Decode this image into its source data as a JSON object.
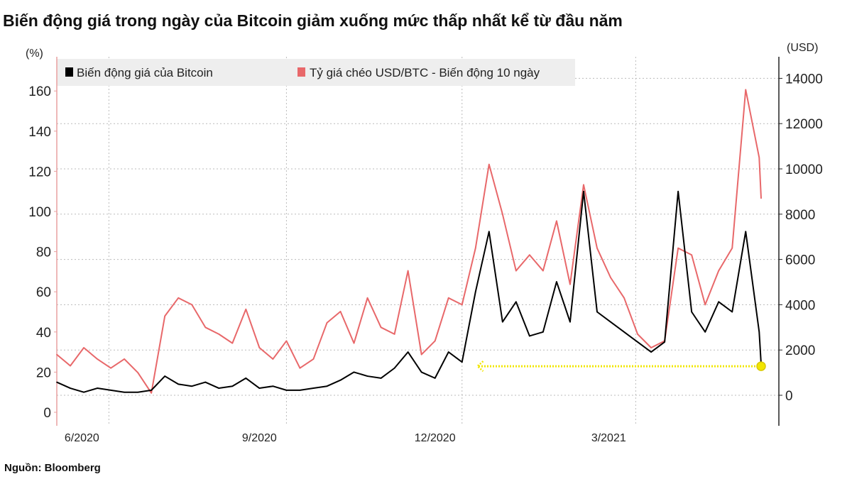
{
  "title": "Biến động giá trong ngày của Bitcoin giảm xuống mức thấp nhất kể từ đầu năm",
  "source": "Nguồn: Bloomberg",
  "chart_data": {
    "type": "line",
    "title": "Biến động giá trong ngày của Bitcoin giảm xuống mức thấp nhất kể từ đầu năm",
    "left_axis": {
      "unit_label": "(%)",
      "ticks": [
        0,
        20,
        40,
        60,
        80,
        100,
        120,
        140,
        160
      ],
      "range": [
        -6,
        168
      ]
    },
    "right_axis": {
      "unit_label": "(USD)",
      "ticks": [
        0,
        2000,
        4000,
        6000,
        8000,
        10000,
        12000,
        14000
      ],
      "range": [
        -1300,
        14700
      ]
    },
    "x_ticks": [
      {
        "label": "6/2020",
        "date": "2020-06-01"
      },
      {
        "label": "9/2020",
        "date": "2020-09-01"
      },
      {
        "label": "12/2020",
        "date": "2020-12-01"
      },
      {
        "label": "3/2021",
        "date": "2021-03-01"
      }
    ],
    "x_range": [
      "2020-05-19",
      "2021-05-19"
    ],
    "grid": true,
    "legend_position": "top",
    "colors": {
      "bitcoin": "#000000",
      "cross_rate": "#e8686a",
      "annotation": "#f2e600"
    },
    "x": [
      "2020-05-19",
      "2020-05-26",
      "2020-06-02",
      "2020-06-09",
      "2020-06-16",
      "2020-06-23",
      "2020-06-30",
      "2020-07-07",
      "2020-07-14",
      "2020-07-21",
      "2020-07-28",
      "2020-08-04",
      "2020-08-11",
      "2020-08-18",
      "2020-08-25",
      "2020-09-01",
      "2020-09-08",
      "2020-09-15",
      "2020-09-22",
      "2020-09-29",
      "2020-10-06",
      "2020-10-13",
      "2020-10-20",
      "2020-10-27",
      "2020-11-03",
      "2020-11-10",
      "2020-11-17",
      "2020-11-24",
      "2020-12-01",
      "2020-12-08",
      "2020-12-15",
      "2020-12-22",
      "2020-12-29",
      "2021-01-05",
      "2021-01-12",
      "2021-01-19",
      "2021-01-26",
      "2021-02-02",
      "2021-02-09",
      "2021-02-16",
      "2021-02-23",
      "2021-03-02",
      "2021-03-09",
      "2021-03-16",
      "2021-03-23",
      "2021-03-30",
      "2021-04-06",
      "2021-04-13",
      "2021-04-20",
      "2021-04-27",
      "2021-05-04",
      "2021-05-11",
      "2021-05-18",
      "2021-05-19"
    ],
    "series": [
      {
        "name": "Biến động giá của Bitcoin",
        "axis": "left",
        "values": [
          15,
          12,
          10,
          12,
          11,
          10,
          10,
          11,
          18,
          14,
          13,
          15,
          12,
          13,
          17,
          12,
          13,
          11,
          11,
          12,
          13,
          16,
          20,
          18,
          17,
          22,
          30,
          20,
          17,
          30,
          25,
          60,
          90,
          45,
          55,
          38,
          40,
          65,
          45,
          110,
          50,
          45,
          40,
          35,
          30,
          35,
          110,
          50,
          40,
          55,
          50,
          90,
          40,
          24
        ]
      },
      {
        "name": "Tỷ giá chéo USD/BTC - Biến động 10 ngày",
        "axis": "right",
        "values": [
          1800,
          1300,
          2100,
          1600,
          1200,
          1600,
          1000,
          100,
          3500,
          4300,
          4000,
          3000,
          2700,
          2300,
          3800,
          2100,
          1600,
          2400,
          1200,
          1600,
          3200,
          3700,
          2300,
          4300,
          3000,
          2700,
          5500,
          1800,
          2400,
          4300,
          4000,
          6500,
          10200,
          8000,
          5500,
          6200,
          5500,
          7700,
          4900,
          9300,
          6500,
          5200,
          4300,
          2700,
          2100,
          2400,
          6500,
          6200,
          4000,
          5500,
          6500,
          13500,
          10500,
          8700
        ]
      }
    ],
    "annotation": {
      "type": "arrow",
      "from_date": "2021-05-19",
      "to_date": "2020-12-23",
      "level": 24,
      "axis": "left"
    }
  }
}
